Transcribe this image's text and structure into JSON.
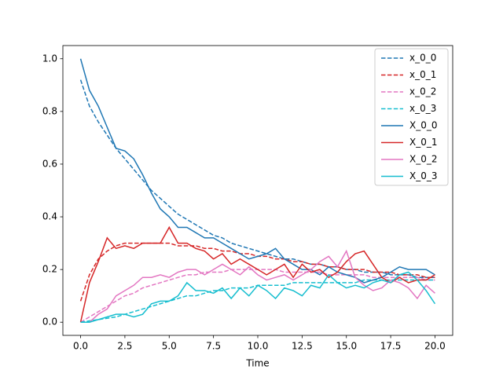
{
  "chart_data": {
    "type": "line",
    "xlabel": "Time",
    "x": [
      0,
      0.5,
      1,
      1.5,
      2,
      2.5,
      3,
      3.5,
      4,
      4.5,
      5,
      5.5,
      6,
      6.5,
      7,
      7.5,
      8,
      8.5,
      9,
      9.5,
      10,
      10.5,
      11,
      11.5,
      12,
      12.5,
      13,
      13.5,
      14,
      14.5,
      15,
      15.5,
      16,
      16.5,
      17,
      17.5,
      18,
      18.5,
      19,
      19.5,
      20
    ],
    "xlim": [
      -1,
      21
    ],
    "xticks": [
      {
        "value": 0,
        "label": "0.0"
      },
      2.5,
      {
        "value": 5,
        "label": "5.0"
      },
      7.5,
      {
        "value": 10,
        "label": "10.0"
      },
      12.5,
      {
        "value": 15,
        "label": "15.0"
      },
      17.5,
      {
        "value": 20,
        "label": "20.0"
      }
    ],
    "ylim": [
      -0.05,
      1.05
    ],
    "yticks": [
      {
        "value": 0,
        "label": "0.0"
      },
      0.2,
      0.4,
      0.6,
      0.8,
      {
        "value": 1,
        "label": "1.0"
      }
    ],
    "legend": "upper right",
    "series": [
      {
        "name": "x_0_0",
        "color": "#1f77b4",
        "linestyle": "dashed",
        "values": [
          0.92,
          0.82,
          0.76,
          0.71,
          0.66,
          0.62,
          0.58,
          0.54,
          0.5,
          0.47,
          0.44,
          0.41,
          0.39,
          0.37,
          0.35,
          0.33,
          0.32,
          0.3,
          0.29,
          0.28,
          0.27,
          0.26,
          0.25,
          0.24,
          0.24,
          0.23,
          0.22,
          0.22,
          0.21,
          0.21,
          0.2,
          0.2,
          0.19,
          0.19,
          0.19,
          0.18,
          0.18,
          0.18,
          0.17,
          0.17,
          0.17
        ]
      },
      {
        "name": "x_0_1",
        "color": "#d62728",
        "linestyle": "dashed",
        "values": [
          0.08,
          0.18,
          0.24,
          0.27,
          0.29,
          0.3,
          0.3,
          0.3,
          0.3,
          0.3,
          0.3,
          0.29,
          0.29,
          0.29,
          0.28,
          0.28,
          0.27,
          0.27,
          0.26,
          0.26,
          0.25,
          0.25,
          0.24,
          0.24,
          0.23,
          0.23,
          0.22,
          0.22,
          0.21,
          0.21,
          0.2,
          0.2,
          0.2,
          0.19,
          0.19,
          0.19,
          0.18,
          0.18,
          0.18,
          0.17,
          0.17
        ]
      },
      {
        "name": "x_0_2",
        "color": "#e377c2",
        "linestyle": "dashed",
        "values": [
          0,
          0.02,
          0.04,
          0.06,
          0.08,
          0.1,
          0.11,
          0.13,
          0.14,
          0.15,
          0.16,
          0.17,
          0.18,
          0.18,
          0.19,
          0.19,
          0.19,
          0.2,
          0.2,
          0.2,
          0.2,
          0.2,
          0.2,
          0.19,
          0.19,
          0.19,
          0.19,
          0.19,
          0.18,
          0.18,
          0.18,
          0.18,
          0.18,
          0.17,
          0.17,
          0.17,
          0.17,
          0.17,
          0.17,
          0.16,
          0.16
        ]
      },
      {
        "name": "x_0_3",
        "color": "#17becf",
        "linestyle": "dashed",
        "values": [
          0,
          0.005,
          0.01,
          0.015,
          0.02,
          0.03,
          0.04,
          0.05,
          0.06,
          0.07,
          0.08,
          0.09,
          0.1,
          0.1,
          0.11,
          0.12,
          0.12,
          0.13,
          0.13,
          0.13,
          0.14,
          0.14,
          0.14,
          0.14,
          0.15,
          0.15,
          0.15,
          0.15,
          0.15,
          0.15,
          0.15,
          0.15,
          0.16,
          0.16,
          0.16,
          0.16,
          0.16,
          0.16,
          0.16,
          0.16,
          0.16
        ]
      },
      {
        "name": "X_0_0",
        "color": "#1f77b4",
        "linestyle": "solid",
        "values": [
          1.0,
          0.88,
          0.82,
          0.74,
          0.66,
          0.65,
          0.62,
          0.56,
          0.49,
          0.43,
          0.4,
          0.36,
          0.36,
          0.34,
          0.32,
          0.32,
          0.3,
          0.28,
          0.26,
          0.24,
          0.25,
          0.26,
          0.28,
          0.24,
          0.22,
          0.2,
          0.2,
          0.18,
          0.21,
          0.19,
          0.18,
          0.17,
          0.15,
          0.16,
          0.17,
          0.19,
          0.21,
          0.2,
          0.2,
          0.2,
          0.18
        ]
      },
      {
        "name": "X_0_1",
        "color": "#d62728",
        "linestyle": "solid",
        "values": [
          0,
          0.15,
          0.23,
          0.32,
          0.28,
          0.29,
          0.28,
          0.3,
          0.3,
          0.3,
          0.36,
          0.3,
          0.3,
          0.28,
          0.27,
          0.24,
          0.26,
          0.22,
          0.24,
          0.22,
          0.2,
          0.18,
          0.2,
          0.22,
          0.17,
          0.22,
          0.19,
          0.2,
          0.17,
          0.19,
          0.23,
          0.26,
          0.27,
          0.22,
          0.17,
          0.15,
          0.17,
          0.15,
          0.16,
          0.16,
          0.18
        ]
      },
      {
        "name": "X_0_2",
        "color": "#e377c2",
        "linestyle": "solid",
        "values": [
          0,
          0,
          0.03,
          0.05,
          0.1,
          0.12,
          0.14,
          0.17,
          0.17,
          0.18,
          0.17,
          0.19,
          0.2,
          0.2,
          0.18,
          0.2,
          0.22,
          0.2,
          0.18,
          0.21,
          0.18,
          0.16,
          0.17,
          0.18,
          0.16,
          0.18,
          0.2,
          0.23,
          0.25,
          0.21,
          0.27,
          0.17,
          0.14,
          0.12,
          0.13,
          0.16,
          0.15,
          0.13,
          0.09,
          0.14,
          0.11
        ]
      },
      {
        "name": "X_0_3",
        "color": "#17becf",
        "linestyle": "solid",
        "values": [
          0,
          0,
          0.01,
          0.02,
          0.03,
          0.03,
          0.02,
          0.03,
          0.07,
          0.08,
          0.08,
          0.1,
          0.15,
          0.12,
          0.12,
          0.11,
          0.13,
          0.09,
          0.13,
          0.1,
          0.14,
          0.12,
          0.09,
          0.13,
          0.12,
          0.1,
          0.14,
          0.13,
          0.18,
          0.15,
          0.13,
          0.14,
          0.13,
          0.15,
          0.16,
          0.15,
          0.18,
          0.19,
          0.16,
          0.12,
          0.07
        ]
      }
    ]
  }
}
